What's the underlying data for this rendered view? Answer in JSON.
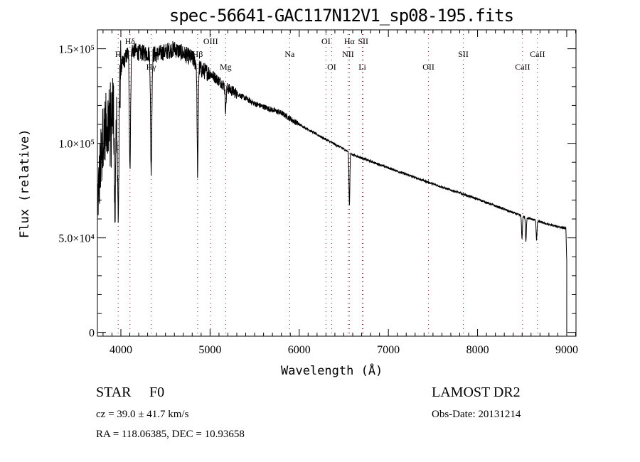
{
  "chart_data": {
    "type": "line",
    "title": "spec-56641-GAC117N12V1_sp08-195.fits",
    "xlabel": "Wavelength (Å)",
    "ylabel": "Flux (relative)",
    "xlim": [
      3737,
      9104
    ],
    "ylim": [
      -2000,
      160000
    ],
    "grid": false,
    "x_ticks": [
      4000,
      5000,
      6000,
      7000,
      8000,
      9000
    ],
    "x_tick_labels": [
      "4000",
      "5000",
      "6000",
      "7000",
      "8000",
      "9000"
    ],
    "y_ticks": [
      0,
      50000,
      100000,
      150000
    ],
    "y_tick_labels": [
      "0",
      "5.0×10⁴",
      "1.0×10⁵",
      "1.5×10⁵"
    ],
    "continuum": [
      [
        3740,
        70000
      ],
      [
        3800,
        105000
      ],
      [
        3900,
        118000
      ],
      [
        4000,
        140000
      ],
      [
        4100,
        150000
      ],
      [
        4200,
        148000
      ],
      [
        4400,
        147000
      ],
      [
        4600,
        150000
      ],
      [
        4800,
        145000
      ],
      [
        4900,
        139000
      ],
      [
        5000,
        137000
      ],
      [
        5200,
        129000
      ],
      [
        5500,
        121000
      ],
      [
        5800,
        116000
      ],
      [
        6000,
        110000
      ],
      [
        6300,
        102000
      ],
      [
        6500,
        97000
      ],
      [
        6600,
        94000
      ],
      [
        7000,
        87000
      ],
      [
        7500,
        78500
      ],
      [
        8000,
        70500
      ],
      [
        8500,
        61500
      ],
      [
        8800,
        57000
      ],
      [
        8990,
        55000
      ],
      [
        9000,
        38000
      ]
    ],
    "absorption_lines": [
      {
        "wave": 3934,
        "depth": 62000,
        "width": 8
      },
      {
        "wave": 3970,
        "depth": 70000,
        "width": 9
      },
      {
        "wave": 4102,
        "depth": 62000,
        "width": 7
      },
      {
        "wave": 4340,
        "depth": 62000,
        "width": 7
      },
      {
        "wave": 4861,
        "depth": 57000,
        "width": 6
      },
      {
        "wave": 5175,
        "depth": 12000,
        "width": 6
      },
      {
        "wave": 6563,
        "depth": 28000,
        "width": 5
      },
      {
        "wave": 8498,
        "depth": 12000,
        "width": 5
      },
      {
        "wave": 8542,
        "depth": 13000,
        "width": 5
      },
      {
        "wave": 8662,
        "depth": 10000,
        "width": 5
      }
    ],
    "line_markers": [
      {
        "label": "H",
        "wave": 3970,
        "row": 1
      },
      {
        "label": "Hδ",
        "wave": 4102,
        "row": 0
      },
      {
        "label": "Hγ",
        "wave": 4340,
        "row": 2
      },
      {
        "label": "Hβ",
        "wave": 4861,
        "row": 1
      },
      {
        "label": "OIII",
        "wave": 5007,
        "row": 0
      },
      {
        "label": "Mg",
        "wave": 5175,
        "row": 2
      },
      {
        "label": "Na",
        "wave": 5893,
        "row": 1
      },
      {
        "label": "OI",
        "wave": 6300,
        "row": 0
      },
      {
        "label": "OI",
        "wave": 6364,
        "row": 2
      },
      {
        "label": "NII",
        "wave": 6548,
        "row": 1
      },
      {
        "label": "Hα",
        "wave": 6563,
        "row": 0
      },
      {
        "label": "Li",
        "wave": 6708,
        "row": 2
      },
      {
        "label": "SII",
        "wave": 6717,
        "row": 0
      },
      {
        "label": "OII",
        "wave": 7450,
        "row": 2
      },
      {
        "label": "SII",
        "wave": 7840,
        "row": 1
      },
      {
        "label": "CaII",
        "wave": 8505,
        "row": 2
      },
      {
        "label": "CaII",
        "wave": 8672,
        "row": 1
      }
    ]
  },
  "info": {
    "object_class": "STAR",
    "subclass": "F0",
    "survey": "LAMOST DR2",
    "redshift": "cz = 39.0 ± 41.7 km/s",
    "obs_date": "Obs-Date: 20131214",
    "coords": "RA = 118.06385, DEC =  10.93658"
  },
  "colors": {
    "spectrum": "#000000",
    "markers": "#8b1a1a"
  }
}
